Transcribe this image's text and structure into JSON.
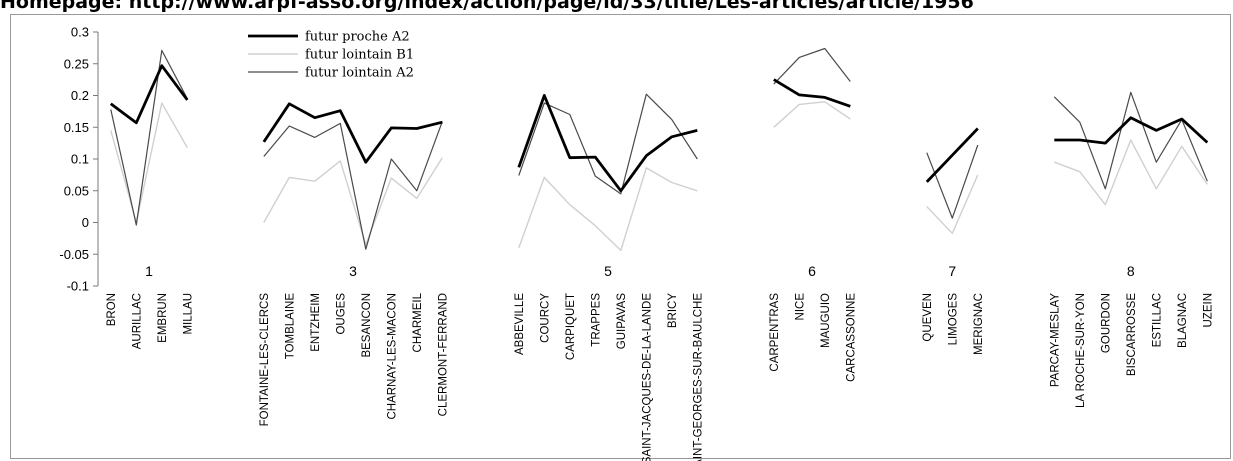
{
  "header_text": "Homepage: http://www.arpf-asso.org/index/action/page/id/33/title/Les-articles/article/1956",
  "chart_data": {
    "type": "line",
    "ylim": [
      -0.1,
      0.3
    ],
    "yticks": [
      "0.3",
      "0.25",
      "0.2",
      "0.15",
      "0.1",
      "0.05",
      "0",
      "-0.05",
      "-0.1"
    ],
    "legend_position": "top-left",
    "groups": [
      {
        "label": "1",
        "stations": [
          "BRON",
          "AURILLAC",
          "EMBRUN",
          "MILLAU"
        ],
        "series": [
          {
            "name": "futur proche A2",
            "values": [
              0.187,
              0.157,
              0.247,
              0.193
            ]
          },
          {
            "name": "futur lointain B1",
            "values": [
              0.145,
              0.0,
              0.188,
              0.118
            ]
          },
          {
            "name": "futur lointain A2",
            "values": [
              0.178,
              -0.004,
              0.271,
              0.195
            ]
          }
        ]
      },
      {
        "label": "3",
        "stations": [
          "FONTAINE-LES-CLERCS",
          "TOMBLAINE",
          "ENTZHEIM",
          "OUGES",
          "BESANCON",
          "CHARNAY-LES-MACON",
          "CHARMEIL",
          "CLERMONT-FERRAND"
        ],
        "series": [
          {
            "name": "futur proche A2",
            "values": [
              0.127,
              0.187,
              0.165,
              0.176,
              0.095,
              0.149,
              0.148,
              0.158
            ]
          },
          {
            "name": "futur lointain B1",
            "values": [
              0.0,
              0.071,
              0.065,
              0.097,
              -0.035,
              0.07,
              0.038,
              0.102
            ]
          },
          {
            "name": "futur lointain A2",
            "values": [
              0.104,
              0.152,
              0.134,
              0.156,
              -0.042,
              0.1,
              0.05,
              0.159
            ]
          }
        ]
      },
      {
        "label": "5",
        "stations": [
          "ABBEVILLE",
          "COURCY",
          "CARPIQUET",
          "TRAPPES",
          "GUIPAVAS",
          "SAINT-JACQUES-DE-LA-LANDE",
          "BRICY",
          "SAINT-GEORGES-SUR-BAULCHE"
        ],
        "series": [
          {
            "name": "futur proche A2",
            "values": [
              0.087,
              0.2,
              0.102,
              0.103,
              0.05,
              0.105,
              0.135,
              0.145
            ]
          },
          {
            "name": "futur lointain B1",
            "values": [
              -0.04,
              0.071,
              0.028,
              -0.005,
              -0.044,
              0.086,
              0.063,
              0.05
            ]
          },
          {
            "name": "futur lointain A2",
            "values": [
              0.074,
              0.188,
              0.17,
              0.073,
              0.045,
              0.202,
              0.162,
              0.1
            ]
          }
        ]
      },
      {
        "label": "6",
        "stations": [
          "CARPENTRAS",
          "NICE",
          "MAUGUIO",
          "CARCASSONNE"
        ],
        "series": [
          {
            "name": "futur proche A2",
            "values": [
              0.225,
              0.201,
              0.197,
              0.183
            ]
          },
          {
            "name": "futur lointain B1",
            "values": [
              0.15,
              0.186,
              0.19,
              0.163
            ]
          },
          {
            "name": "futur lointain A2",
            "values": [
              0.218,
              0.26,
              0.274,
              0.222
            ]
          }
        ]
      },
      {
        "label": "7",
        "stations": [
          "QUEVEN",
          "LIMOGES",
          "MERIGNAC"
        ],
        "series": [
          {
            "name": "futur proche A2",
            "values": [
              0.064,
              0.106,
              0.148
            ]
          },
          {
            "name": "futur lointain B1",
            "values": [
              0.025,
              -0.017,
              0.075
            ]
          },
          {
            "name": "futur lointain A2",
            "values": [
              0.11,
              0.007,
              0.122
            ]
          }
        ]
      },
      {
        "label": "8",
        "stations": [
          "PARCAY-MESLAY",
          "LA ROCHE-SUR-YON",
          "GOURDON",
          "BISCARROSSE",
          "ESTILLAC",
          "BLAGNAC",
          "UZEIN"
        ],
        "series": [
          {
            "name": "futur proche A2",
            "values": [
              0.13,
              0.13,
              0.125,
              0.165,
              0.145,
              0.163,
              0.126
            ]
          },
          {
            "name": "futur lointain B1",
            "values": [
              0.095,
              0.08,
              0.028,
              0.13,
              0.053,
              0.12,
              0.06
            ]
          },
          {
            "name": "futur lointain A2",
            "values": [
              0.198,
              0.158,
              0.053,
              0.205,
              0.095,
              0.162,
              0.065
            ]
          }
        ]
      }
    ],
    "series_styles": [
      {
        "name": "futur proche A2",
        "color": "#000000"
      },
      {
        "name": "futur lointain B1",
        "color": "#d0d0d0"
      },
      {
        "name": "futur lointain A2",
        "color": "#4a4a4a"
      }
    ]
  }
}
